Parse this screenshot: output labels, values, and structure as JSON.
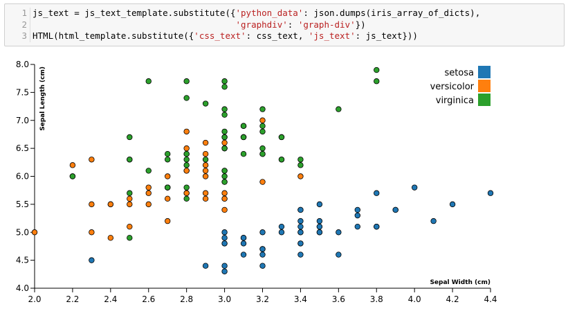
{
  "code": {
    "line_numbers": [
      1,
      2,
      3
    ],
    "lines": [
      [
        {
          "text": "js_text = js_text_template.substitute({",
          "color": "#000000"
        },
        {
          "text": "'python_data'",
          "color": "#ba2121"
        },
        {
          "text": ": json.dumps(iris_array_of_dicts),",
          "color": "#000000"
        }
      ],
      [
        {
          "text": "                                       ",
          "color": "#000000"
        },
        {
          "text": "'graphdiv'",
          "color": "#ba2121"
        },
        {
          "text": ": ",
          "color": "#000000"
        },
        {
          "text": "'graph-div'",
          "color": "#ba2121"
        },
        {
          "text": "})",
          "color": "#000000"
        }
      ],
      [
        {
          "text": "HTML(html_template.substitute({",
          "color": "#000000"
        },
        {
          "text": "'css_text'",
          "color": "#ba2121"
        },
        {
          "text": ": css_text, ",
          "color": "#000000"
        },
        {
          "text": "'js_text'",
          "color": "#ba2121"
        },
        {
          "text": ": js_text}))",
          "color": "#000000"
        }
      ]
    ]
  },
  "chart_data": {
    "type": "scatter",
    "x_label": "Sepal Width (cm)",
    "y_label": "Sepal Length (cm)",
    "xlim": [
      2.0,
      4.4
    ],
    "ylim": [
      4.0,
      8.0
    ],
    "xticks": [
      {
        "value": 2,
        "label": "2.0"
      },
      2.2,
      2.4,
      2.6,
      2.8,
      {
        "value": 3,
        "label": "3.0"
      },
      3.2,
      3.4,
      3.6,
      3.8,
      {
        "value": 4,
        "label": "4.0"
      },
      4.2,
      4.4
    ],
    "yticks": [
      {
        "value": 4,
        "label": "4.0"
      },
      4.5,
      {
        "value": 5,
        "label": "5.0"
      },
      5.5,
      {
        "value": 6,
        "label": "6.0"
      },
      6.5,
      {
        "value": 7,
        "label": "7.0"
      },
      7.5,
      {
        "value": 8,
        "label": "8.0"
      }
    ],
    "legend": "top-right",
    "series": [
      {
        "name": "setosa",
        "color": "#1f77b4",
        "x": [
          3.5,
          3.0,
          3.2,
          3.1,
          3.6,
          3.9,
          3.4,
          3.4,
          2.9,
          3.1,
          3.7,
          3.4,
          3.0,
          3.0,
          4.0,
          4.4,
          3.9,
          3.5,
          3.8,
          3.8,
          3.4,
          3.7,
          3.6,
          3.3,
          3.4,
          3.0,
          3.4,
          3.5,
          3.4,
          3.2,
          3.1,
          3.4,
          4.1,
          4.2,
          3.1,
          3.2,
          3.5,
          3.1,
          3.0,
          3.4,
          3.5,
          2.3,
          3.2,
          3.5,
          3.8,
          3.0,
          3.8,
          3.2,
          3.7,
          3.3
        ],
        "values": [
          5.1,
          4.9,
          4.7,
          4.6,
          5.0,
          5.4,
          4.6,
          5.0,
          4.4,
          4.9,
          5.4,
          4.8,
          4.8,
          4.3,
          5.8,
          5.7,
          5.4,
          5.1,
          5.7,
          5.1,
          5.4,
          5.1,
          4.6,
          5.1,
          4.8,
          5.0,
          5.0,
          5.2,
          5.2,
          4.7,
          4.8,
          5.4,
          5.2,
          5.5,
          4.9,
          5.0,
          5.5,
          4.9,
          4.4,
          5.1,
          5.0,
          4.5,
          4.4,
          5.0,
          5.1,
          4.8,
          5.1,
          4.6,
          5.3,
          5.0
        ]
      },
      {
        "name": "versicolor",
        "color": "#ff7f0e",
        "x": [
          3.2,
          3.2,
          3.1,
          2.3,
          2.8,
          2.8,
          3.3,
          2.4,
          2.9,
          2.7,
          2.0,
          3.0,
          2.2,
          2.9,
          2.9,
          3.1,
          3.0,
          2.7,
          2.2,
          2.5,
          3.2,
          2.8,
          2.5,
          2.8,
          2.9,
          3.0,
          2.8,
          3.0,
          2.9,
          2.6,
          2.4,
          2.4,
          2.7,
          2.7,
          3.0,
          3.4,
          3.1,
          2.3,
          3.0,
          2.5,
          2.6,
          3.0,
          2.6,
          2.3,
          2.7,
          3.0,
          2.9,
          2.9,
          2.5,
          2.8
        ],
        "values": [
          7.0,
          6.4,
          6.9,
          5.5,
          6.5,
          5.7,
          6.3,
          4.9,
          6.6,
          5.2,
          5.0,
          5.9,
          6.0,
          6.1,
          5.6,
          6.7,
          5.6,
          5.8,
          6.2,
          5.6,
          5.9,
          6.1,
          6.3,
          6.1,
          6.4,
          6.6,
          6.8,
          6.7,
          6.0,
          5.7,
          5.5,
          5.5,
          5.8,
          6.0,
          5.4,
          6.0,
          6.7,
          6.3,
          5.6,
          5.5,
          5.5,
          6.1,
          5.8,
          5.0,
          5.6,
          5.7,
          5.7,
          6.2,
          5.1,
          5.7
        ]
      },
      {
        "name": "virginica",
        "color": "#2ca02c",
        "x": [
          3.3,
          2.7,
          3.0,
          2.9,
          3.0,
          3.0,
          2.5,
          2.9,
          2.5,
          3.6,
          3.2,
          2.7,
          3.0,
          2.5,
          2.8,
          3.2,
          3.0,
          3.8,
          2.6,
          2.2,
          3.2,
          2.8,
          2.8,
          2.7,
          3.3,
          3.2,
          2.8,
          3.0,
          2.8,
          3.0,
          2.8,
          3.8,
          2.8,
          2.8,
          2.6,
          3.0,
          3.4,
          3.1,
          3.0,
          3.1,
          3.1,
          3.1,
          2.7,
          3.2,
          3.3,
          3.0,
          2.5,
          3.0,
          3.4,
          3.0
        ],
        "values": [
          6.3,
          5.8,
          7.1,
          6.3,
          6.5,
          7.6,
          4.9,
          7.3,
          6.7,
          7.2,
          6.5,
          6.4,
          6.8,
          5.7,
          5.8,
          6.4,
          6.5,
          7.7,
          7.7,
          6.0,
          6.9,
          5.6,
          7.7,
          6.3,
          6.7,
          7.2,
          6.2,
          6.1,
          6.4,
          7.2,
          7.4,
          7.9,
          6.4,
          6.3,
          6.1,
          7.7,
          6.3,
          6.4,
          6.0,
          6.9,
          6.7,
          6.9,
          5.8,
          6.8,
          6.7,
          6.7,
          6.3,
          6.5,
          6.2,
          5.9
        ]
      }
    ]
  }
}
